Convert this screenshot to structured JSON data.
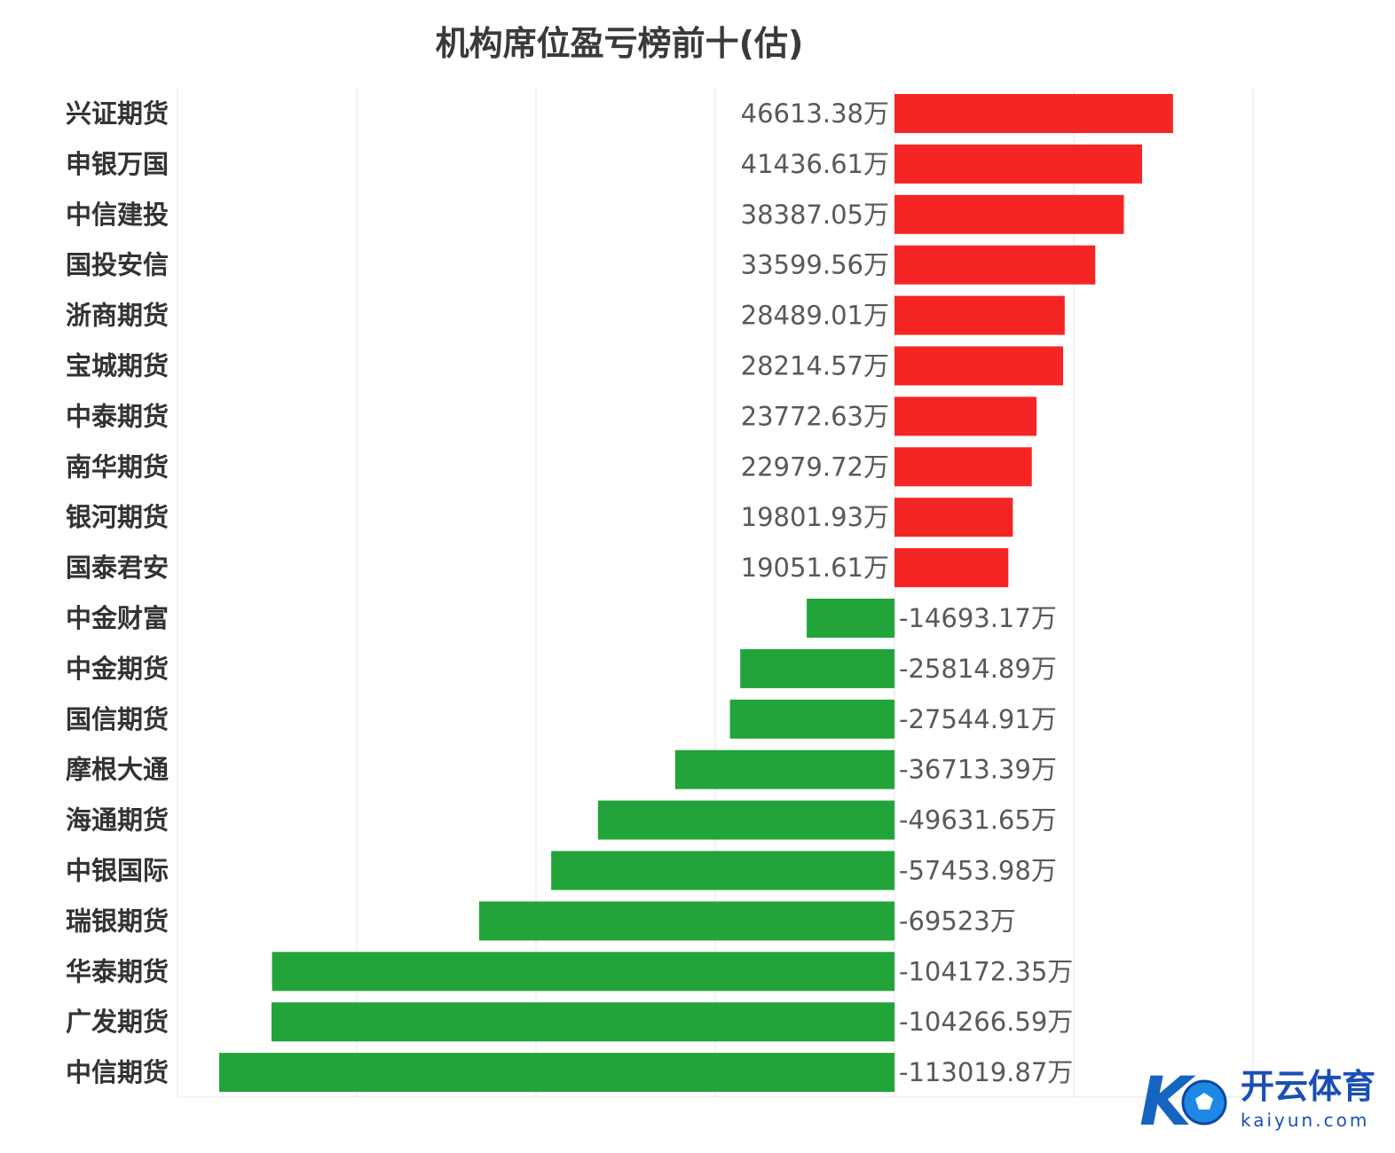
{
  "chart_data": {
    "type": "bar",
    "orientation": "horizontal",
    "title": "机构席位盈亏榜前十(估)",
    "categories": [
      "兴证期货",
      "申银万国",
      "中信建投",
      "国投安信",
      "浙商期货",
      "宝城期货",
      "中泰期货",
      "南华期货",
      "银河期货",
      "国泰君安",
      "中金财富",
      "中金期货",
      "国信期货",
      "摩根大通",
      "海通期货",
      "中银国际",
      "瑞银期货",
      "华泰期货",
      "广发期货",
      "中信期货"
    ],
    "values": [
      46613.38,
      41436.61,
      38387.05,
      33599.56,
      28489.01,
      28214.57,
      23772.63,
      22979.72,
      19801.93,
      19051.61,
      -14693.17,
      -25814.89,
      -27544.91,
      -36713.39,
      -49631.65,
      -57453.98,
      -69523,
      -104172.35,
      -104266.59,
      -113019.87
    ],
    "labels": [
      "46613.38万",
      "41436.61万",
      "38387.05万",
      "33599.56万",
      "28489.01万",
      "28214.57万",
      "23772.63万",
      "22979.72万",
      "19801.93万",
      "19051.61万",
      "-14693.17万",
      "-25814.89万",
      "-27544.91万",
      "-36713.39万",
      "-49631.65万",
      "-57453.98万",
      "-69523万",
      "-104172.35万",
      "-104266.59万",
      "-113019.87万"
    ],
    "xlim": [
      -120000,
      60000
    ],
    "grid": true,
    "colors": {
      "positive": "#f52525",
      "negative": "#22a43a"
    }
  },
  "watermark": {
    "name": "开云体育",
    "domain": "kaiyun.com"
  }
}
